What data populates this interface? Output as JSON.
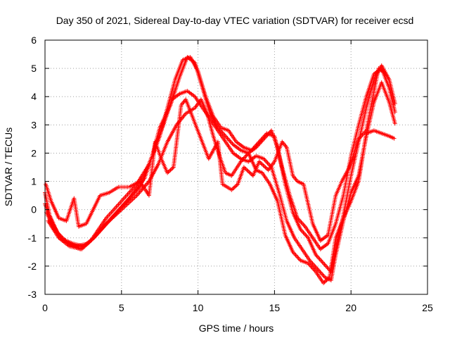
{
  "chart_data": {
    "type": "scatter",
    "title": "Day 350 of 2021, Sidereal Day-to-day VTEC variation (SDTVAR) for receiver ecsd",
    "xlabel": "GPS time / hours",
    "ylabel": "SDTVAR / TECUs",
    "xlim": [
      0,
      25
    ],
    "ylim": [
      -3,
      6
    ],
    "xticks": [
      "0",
      "5",
      "10",
      "15",
      "20",
      "25"
    ],
    "yticks": [
      "-3",
      "-2",
      "-1",
      "0",
      "1",
      "2",
      "3",
      "4",
      "5",
      "6"
    ],
    "grid": true,
    "marker": "+",
    "color": "#ff0000",
    "series": [
      {
        "values": [
          [
            0.0,
            0.6
          ],
          [
            0.3,
            -0.2
          ],
          [
            0.8,
            -0.8
          ],
          [
            1.5,
            -1.2
          ],
          [
            2.3,
            -1.4
          ],
          [
            3.0,
            -1.1
          ],
          [
            4.0,
            -0.3
          ],
          [
            5.0,
            0.3
          ],
          [
            6.0,
            0.9
          ],
          [
            6.8,
            1.6
          ],
          [
            7.5,
            2.6
          ],
          [
            8.0,
            3.6
          ],
          [
            8.5,
            4.6
          ],
          [
            9.0,
            5.3
          ],
          [
            9.5,
            5.4
          ],
          [
            10.0,
            4.9
          ],
          [
            10.5,
            4.0
          ],
          [
            11.0,
            3.3
          ],
          [
            11.5,
            2.9
          ],
          [
            12.0,
            2.8
          ],
          [
            12.5,
            2.4
          ],
          [
            13.0,
            2.2
          ],
          [
            13.5,
            2.1
          ],
          [
            14.0,
            2.4
          ],
          [
            14.5,
            2.7
          ],
          [
            15.0,
            2.6
          ],
          [
            15.5,
            1.5
          ],
          [
            16.0,
            0.5
          ],
          [
            16.5,
            -0.3
          ],
          [
            17.0,
            -0.6
          ],
          [
            17.5,
            -1.0
          ],
          [
            18.0,
            -1.4
          ],
          [
            18.5,
            -1.2
          ],
          [
            19.0,
            -0.5
          ],
          [
            19.5,
            0.5
          ],
          [
            20.0,
            1.9
          ],
          [
            20.5,
            3.0
          ],
          [
            21.0,
            4.0
          ],
          [
            21.5,
            4.8
          ],
          [
            22.0,
            5.0
          ],
          [
            22.5,
            4.3
          ],
          [
            22.9,
            3.4
          ]
        ]
      },
      {
        "values": [
          [
            0.0,
            0.2
          ],
          [
            0.5,
            -0.5
          ],
          [
            1.0,
            -1.0
          ],
          [
            1.8,
            -1.2
          ],
          [
            2.5,
            -1.3
          ],
          [
            3.2,
            -1.0
          ],
          [
            4.2,
            -0.4
          ],
          [
            5.2,
            0.2
          ],
          [
            6.2,
            0.8
          ],
          [
            7.0,
            1.9
          ],
          [
            7.5,
            2.9
          ],
          [
            8.2,
            3.7
          ],
          [
            8.8,
            4.7
          ],
          [
            9.3,
            5.4
          ],
          [
            9.8,
            5.2
          ],
          [
            10.3,
            4.3
          ],
          [
            10.8,
            3.4
          ],
          [
            11.3,
            2.9
          ],
          [
            11.8,
            2.6
          ],
          [
            12.3,
            2.3
          ],
          [
            12.8,
            2.1
          ],
          [
            13.3,
            2.0
          ],
          [
            13.8,
            2.2
          ],
          [
            14.3,
            2.5
          ],
          [
            14.8,
            2.8
          ],
          [
            15.2,
            2.2
          ],
          [
            15.7,
            0.9
          ],
          [
            16.2,
            -0.1
          ],
          [
            16.7,
            -0.7
          ],
          [
            17.2,
            -1.0
          ],
          [
            17.7,
            -1.6
          ],
          [
            18.2,
            -1.9
          ],
          [
            18.7,
            -2.2
          ],
          [
            19.0,
            -1.4
          ],
          [
            19.5,
            -0.2
          ],
          [
            20.0,
            1.2
          ],
          [
            20.5,
            2.4
          ],
          [
            21.0,
            3.6
          ],
          [
            21.5,
            4.6
          ],
          [
            22.0,
            5.1
          ],
          [
            22.5,
            4.6
          ],
          [
            22.9,
            3.7
          ]
        ]
      },
      {
        "values": [
          [
            0.1,
            -0.1
          ],
          [
            0.6,
            -0.7
          ],
          [
            1.2,
            -1.1
          ],
          [
            2.0,
            -1.3
          ],
          [
            2.8,
            -1.2
          ],
          [
            3.5,
            -0.8
          ],
          [
            4.5,
            -0.2
          ],
          [
            5.5,
            0.4
          ],
          [
            6.5,
            1.1
          ],
          [
            7.2,
            2.2
          ],
          [
            7.8,
            3.1
          ],
          [
            8.3,
            3.9
          ],
          [
            8.8,
            4.1
          ],
          [
            9.3,
            4.2
          ],
          [
            9.8,
            4.0
          ],
          [
            10.3,
            3.6
          ],
          [
            10.8,
            3.2
          ],
          [
            11.3,
            2.8
          ],
          [
            11.8,
            2.4
          ],
          [
            12.3,
            2.0
          ],
          [
            12.8,
            1.8
          ],
          [
            13.3,
            1.7
          ],
          [
            13.8,
            1.9
          ],
          [
            14.3,
            1.8
          ],
          [
            14.8,
            1.5
          ],
          [
            15.3,
            0.6
          ],
          [
            15.8,
            -0.4
          ],
          [
            16.3,
            -1.0
          ],
          [
            16.8,
            -1.4
          ],
          [
            17.3,
            -1.8
          ],
          [
            17.8,
            -2.1
          ],
          [
            18.3,
            -2.4
          ],
          [
            18.7,
            -2.5
          ],
          [
            19.0,
            -1.6
          ],
          [
            19.5,
            -0.4
          ],
          [
            20.0,
            0.6
          ],
          [
            20.5,
            1.2
          ],
          [
            21.0,
            2.6
          ],
          [
            21.5,
            3.8
          ],
          [
            22.0,
            4.5
          ],
          [
            22.5,
            3.8
          ],
          [
            22.9,
            3.0
          ]
        ]
      },
      {
        "values": [
          [
            0.2,
            -0.4
          ],
          [
            0.9,
            -1.0
          ],
          [
            1.6,
            -1.3
          ],
          [
            2.4,
            -1.4
          ],
          [
            3.2,
            -1.0
          ],
          [
            4.0,
            -0.5
          ],
          [
            5.0,
            0.0
          ],
          [
            6.0,
            0.5
          ],
          [
            6.8,
            1.0
          ],
          [
            7.4,
            1.6
          ],
          [
            8.0,
            2.4
          ],
          [
            8.6,
            3.0
          ],
          [
            9.2,
            3.4
          ],
          [
            9.8,
            3.6
          ],
          [
            10.2,
            3.9
          ],
          [
            10.6,
            3.4
          ],
          [
            11.0,
            2.6
          ],
          [
            11.4,
            1.9
          ],
          [
            11.8,
            1.3
          ],
          [
            12.2,
            1.2
          ],
          [
            12.8,
            1.7
          ],
          [
            13.3,
            2.0
          ],
          [
            13.8,
            1.4
          ],
          [
            14.2,
            1.3
          ],
          [
            14.7,
            0.9
          ],
          [
            15.2,
            0.3
          ],
          [
            15.7,
            -0.9
          ],
          [
            16.2,
            -1.5
          ],
          [
            16.7,
            -1.8
          ],
          [
            17.2,
            -1.9
          ],
          [
            17.7,
            -2.2
          ],
          [
            18.2,
            -2.6
          ],
          [
            18.6,
            -2.4
          ],
          [
            19.0,
            -1.0
          ],
          [
            19.5,
            -0.3
          ],
          [
            20.0,
            0.3
          ],
          [
            20.5,
            1.0
          ],
          [
            21.0,
            2.7
          ],
          [
            21.5,
            2.8
          ],
          [
            22.0,
            2.7
          ],
          [
            22.5,
            2.6
          ],
          [
            22.9,
            2.5
          ]
        ]
      },
      {
        "values": [
          [
            0.05,
            0.9
          ],
          [
            0.4,
            0.3
          ],
          [
            0.9,
            -0.3
          ],
          [
            1.4,
            -0.4
          ],
          [
            1.9,
            0.4
          ],
          [
            2.2,
            -0.6
          ],
          [
            2.7,
            -0.5
          ],
          [
            3.6,
            0.5
          ],
          [
            4.2,
            0.6
          ],
          [
            4.8,
            0.8
          ],
          [
            5.5,
            0.8
          ],
          [
            6.2,
            1.0
          ],
          [
            6.8,
            0.5
          ],
          [
            7.2,
            2.4
          ],
          [
            7.6,
            1.8
          ],
          [
            8.0,
            1.3
          ],
          [
            8.4,
            1.5
          ],
          [
            8.9,
            3.7
          ],
          [
            9.2,
            3.9
          ],
          [
            10.7,
            1.8
          ],
          [
            11.3,
            2.4
          ],
          [
            11.6,
            0.9
          ],
          [
            12.2,
            0.7
          ],
          [
            12.6,
            0.9
          ],
          [
            13.0,
            1.5
          ],
          [
            13.6,
            1.2
          ],
          [
            14.0,
            1.7
          ],
          [
            14.6,
            1.4
          ],
          [
            15.0,
            1.7
          ],
          [
            15.5,
            2.4
          ],
          [
            15.8,
            2.2
          ],
          [
            16.2,
            1.2
          ],
          [
            16.5,
            1.0
          ],
          [
            16.9,
            0.9
          ],
          [
            17.5,
            -0.5
          ],
          [
            18.0,
            -1.1
          ],
          [
            18.5,
            -0.9
          ],
          [
            19.0,
            0.5
          ],
          [
            19.4,
            1.0
          ],
          [
            19.9,
            1.5
          ],
          [
            20.5,
            2.5
          ],
          [
            21.0,
            2.8
          ],
          [
            21.8,
            5.0
          ],
          [
            22.3,
            4.8
          ]
        ]
      }
    ]
  }
}
